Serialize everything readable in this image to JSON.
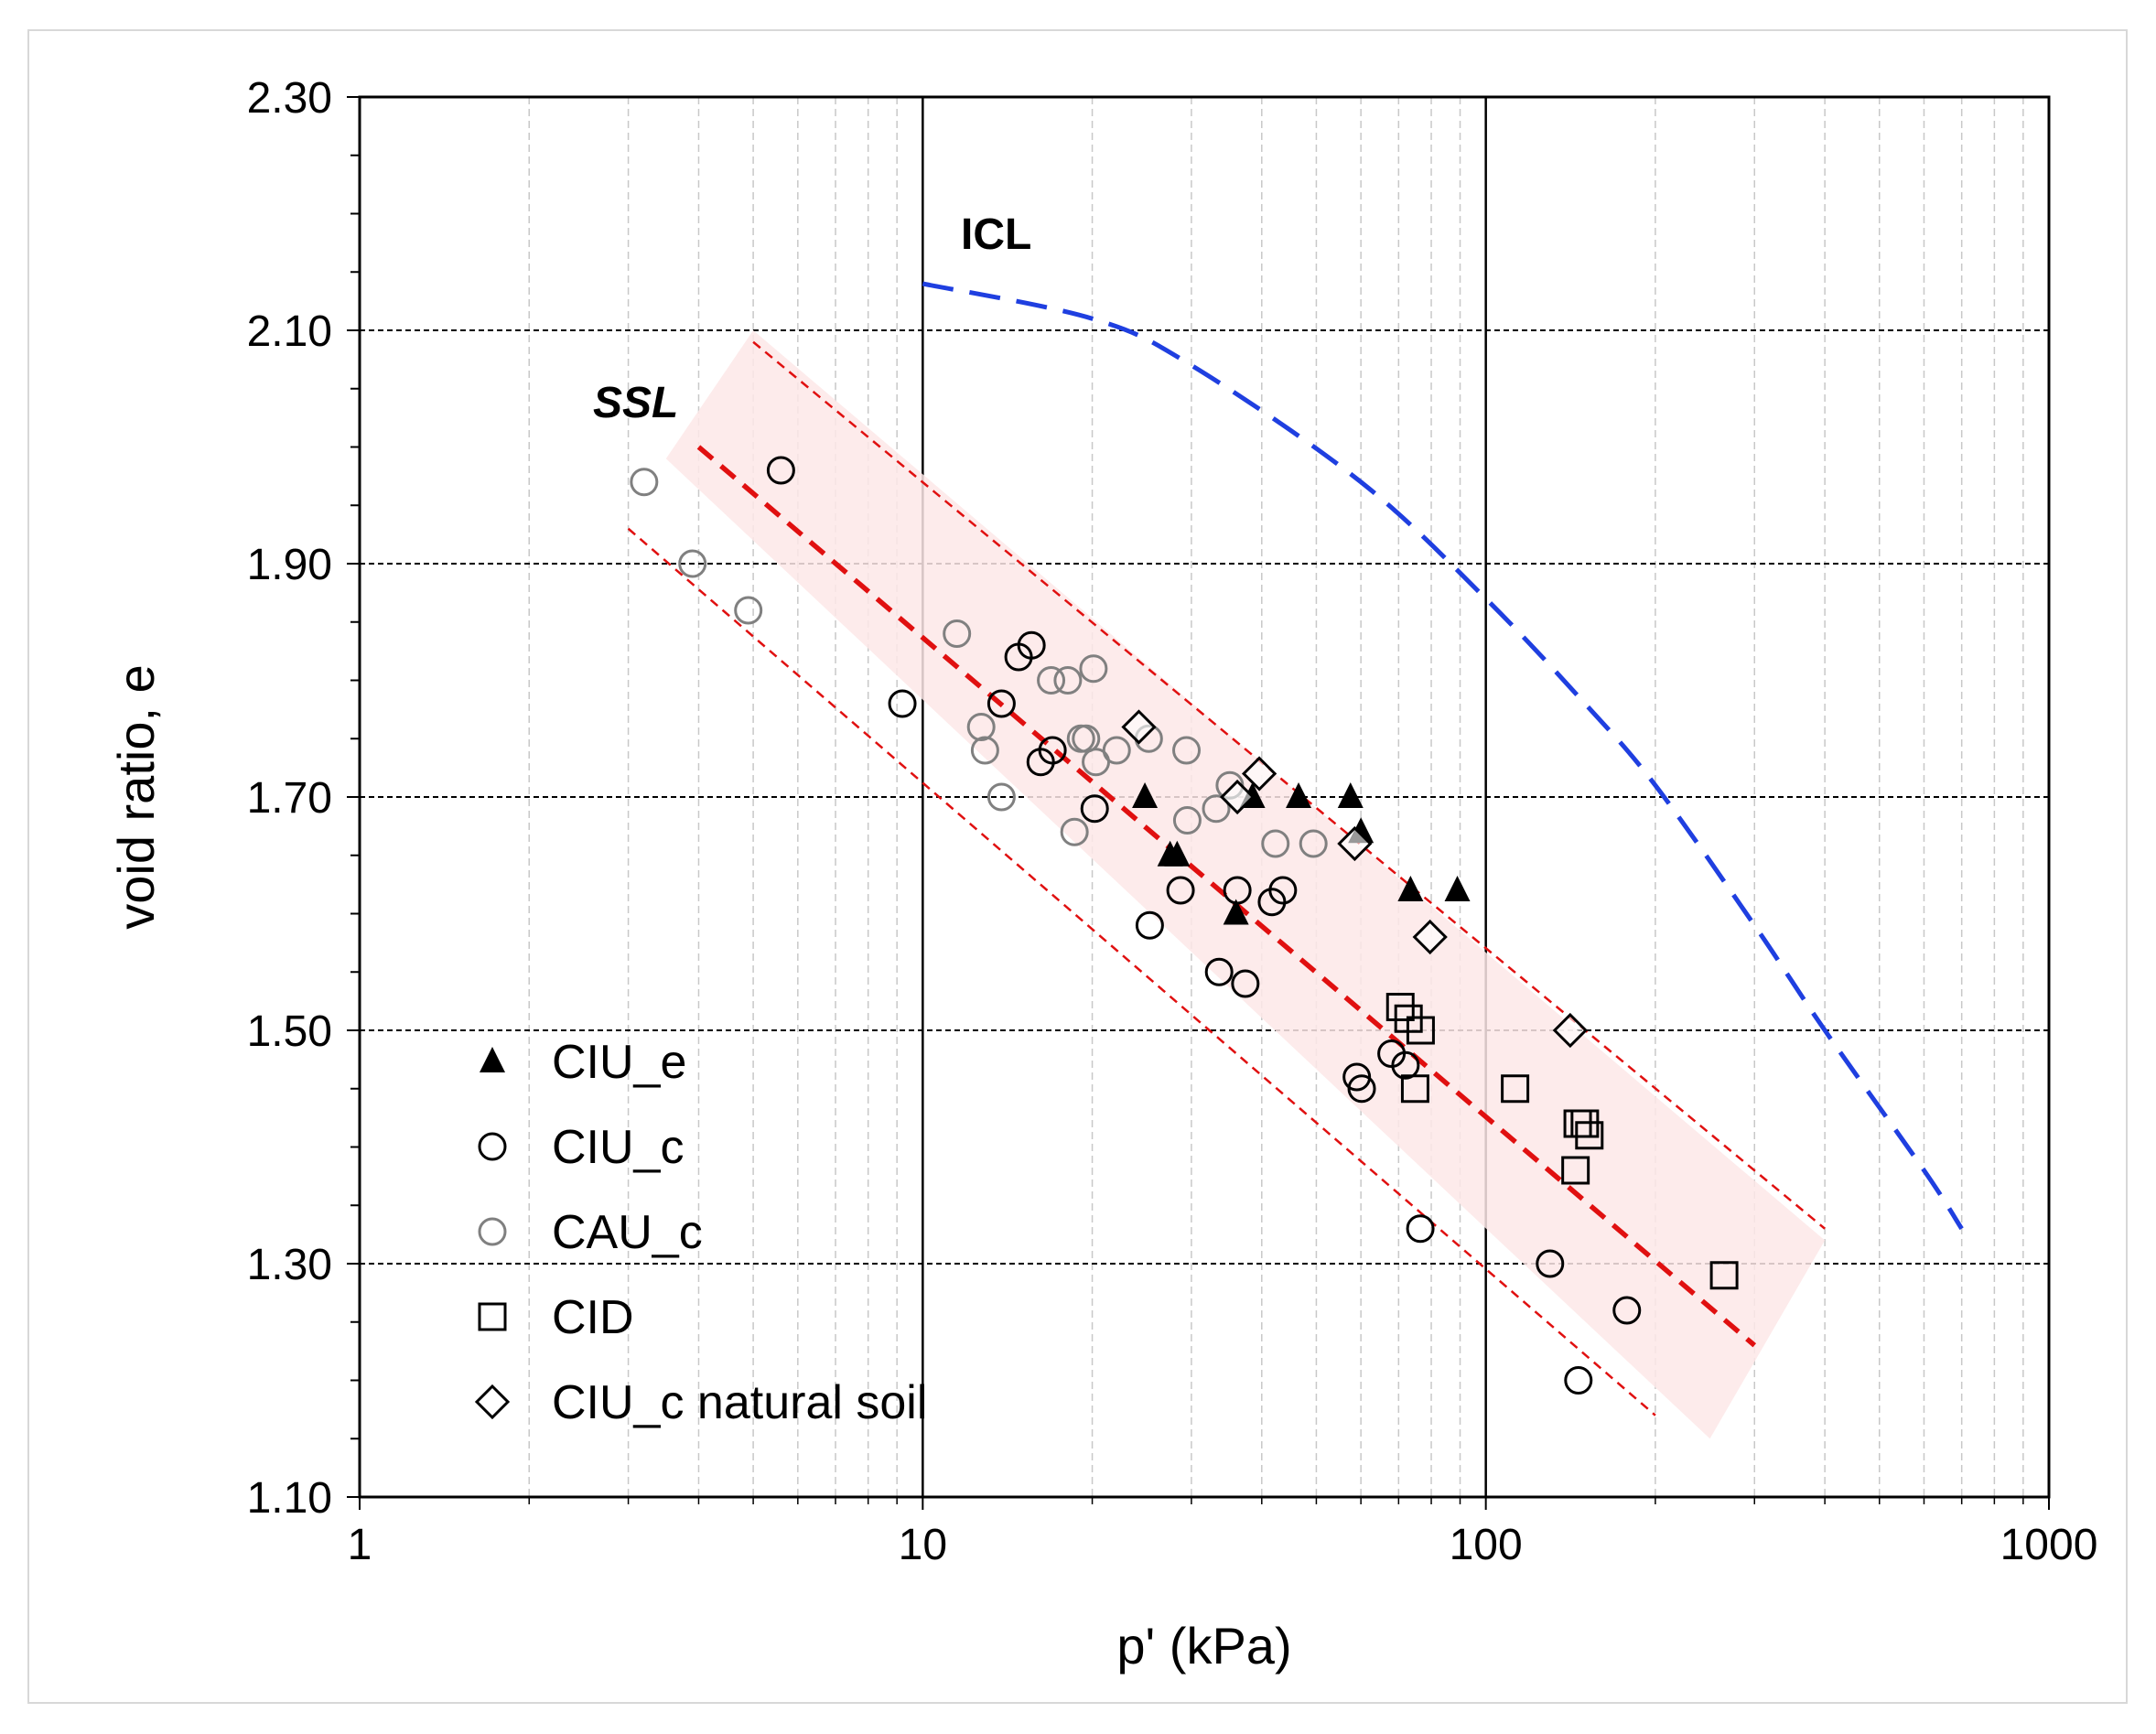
{
  "chart_data": {
    "type": "scatter",
    "title": "",
    "xlabel": "p' (kPa)",
    "ylabel": "void ratio, e",
    "xscale": "log",
    "xlim": [
      1,
      1000
    ],
    "ylim": [
      1.1,
      2.3
    ],
    "x_tick_labels": [
      "1",
      "10",
      "100",
      "1000"
    ],
    "y_tick_labels": [
      "1.10",
      "1.30",
      "1.50",
      "1.70",
      "1.90",
      "2.10",
      "2.30"
    ],
    "legend_position": "bottom-left",
    "series": [
      {
        "name": "CIU_e",
        "marker": "filled-triangle",
        "color": "#000000",
        "points": [
          [
            24.8,
            1.7
          ],
          [
            27.5,
            1.65
          ],
          [
            28.3,
            1.65
          ],
          [
            36,
            1.6
          ],
          [
            38.5,
            1.7
          ],
          [
            46.5,
            1.7
          ],
          [
            57.5,
            1.7
          ],
          [
            60,
            1.67
          ],
          [
            73.5,
            1.62
          ],
          [
            89,
            1.62
          ]
        ]
      },
      {
        "name": "CIU_c",
        "marker": "open-circle",
        "color": "#000000",
        "points": [
          [
            5.6,
            1.98
          ],
          [
            9.2,
            1.78
          ],
          [
            13.8,
            1.78
          ],
          [
            14.8,
            1.82
          ],
          [
            15.6,
            1.83
          ],
          [
            16.2,
            1.73
          ],
          [
            17,
            1.74
          ],
          [
            20.2,
            1.69
          ],
          [
            25.3,
            1.59
          ],
          [
            28.7,
            1.62
          ],
          [
            33.6,
            1.55
          ],
          [
            36.2,
            1.62
          ],
          [
            37.4,
            1.54
          ],
          [
            41.7,
            1.61
          ],
          [
            43.6,
            1.62
          ],
          [
            59,
            1.46
          ],
          [
            60.2,
            1.45
          ],
          [
            68,
            1.48
          ],
          [
            72,
            1.47
          ],
          [
            76.5,
            1.33
          ],
          [
            130,
            1.3
          ],
          [
            146,
            1.2
          ],
          [
            178,
            1.26
          ]
        ]
      },
      {
        "name": "CAU_c",
        "marker": "open-circle-gray",
        "color": "#808080",
        "points": [
          [
            3.2,
            1.97
          ],
          [
            3.9,
            1.9
          ],
          [
            4.9,
            1.86
          ],
          [
            11.5,
            1.84
          ],
          [
            12.7,
            1.76
          ],
          [
            12.9,
            1.74
          ],
          [
            13.8,
            1.7
          ],
          [
            16.9,
            1.8
          ],
          [
            18.1,
            1.8
          ],
          [
            18.6,
            1.67
          ],
          [
            19.1,
            1.75
          ],
          [
            19.5,
            1.75
          ],
          [
            20.1,
            1.81
          ],
          [
            20.3,
            1.73
          ],
          [
            22.1,
            1.74
          ],
          [
            25.2,
            1.75
          ],
          [
            29.4,
            1.74
          ],
          [
            29.5,
            1.68
          ],
          [
            33.2,
            1.69
          ],
          [
            35.1,
            1.71
          ],
          [
            42.3,
            1.66
          ],
          [
            49.4,
            1.66
          ]
        ]
      },
      {
        "name": "CID",
        "marker": "open-square",
        "color": "#000000",
        "points": [
          [
            70.5,
            1.52
          ],
          [
            72.9,
            1.51
          ],
          [
            74.9,
            1.45
          ],
          [
            76.6,
            1.5
          ],
          [
            112.7,
            1.45
          ],
          [
            144.3,
            1.38
          ],
          [
            145.6,
            1.42
          ],
          [
            149.9,
            1.42
          ],
          [
            152.7,
            1.41
          ],
          [
            265,
            1.29
          ]
        ]
      },
      {
        "name": "CIU_c natural soil",
        "marker": "open-diamond",
        "color": "#000000",
        "points": [
          [
            24.2,
            1.76
          ],
          [
            36.2,
            1.7
          ],
          [
            39.6,
            1.72
          ],
          [
            58.5,
            1.66
          ],
          [
            79.6,
            1.58
          ],
          [
            141.2,
            1.5
          ]
        ]
      }
    ],
    "lines": [
      {
        "name": "ICL",
        "style": "long-dash",
        "color": "#1f3fe0",
        "points": [
          [
            10,
            2.14
          ],
          [
            20,
            2.11
          ],
          [
            30,
            2.07
          ],
          [
            60,
            1.97
          ],
          [
            100,
            1.87
          ],
          [
            150,
            1.78
          ],
          [
            200,
            1.71
          ],
          [
            300,
            1.59
          ],
          [
            400,
            1.5
          ],
          [
            600,
            1.38
          ],
          [
            700,
            1.33
          ]
        ]
      },
      {
        "name": "SSL",
        "style": "dash",
        "color": "#e01010",
        "points": [
          [
            4,
            2.0
          ],
          [
            300,
            1.23
          ]
        ]
      },
      {
        "name": "SSL upper bound",
        "style": "fine-dash",
        "color": "#e01010",
        "points": [
          [
            5,
            2.09
          ],
          [
            400,
            1.33
          ]
        ]
      },
      {
        "name": "SSL lower bound",
        "style": "fine-dash",
        "color": "#e01010",
        "points": [
          [
            3,
            1.93
          ],
          [
            200,
            1.17
          ]
        ]
      }
    ],
    "band": {
      "name": "SSL band",
      "color": "#fde8e8",
      "polygon": [
        [
          5,
          2.1
        ],
        [
          400,
          1.32
        ],
        [
          250,
          1.15
        ],
        [
          3.5,
          1.99
        ]
      ]
    },
    "annotations": [
      {
        "text": "ICL",
        "x": 14.2,
        "y": 2.17,
        "style": "bold"
      },
      {
        "text": "SSL",
        "x": 5.3,
        "y": 2.02,
        "style": "bold-italic"
      }
    ]
  }
}
